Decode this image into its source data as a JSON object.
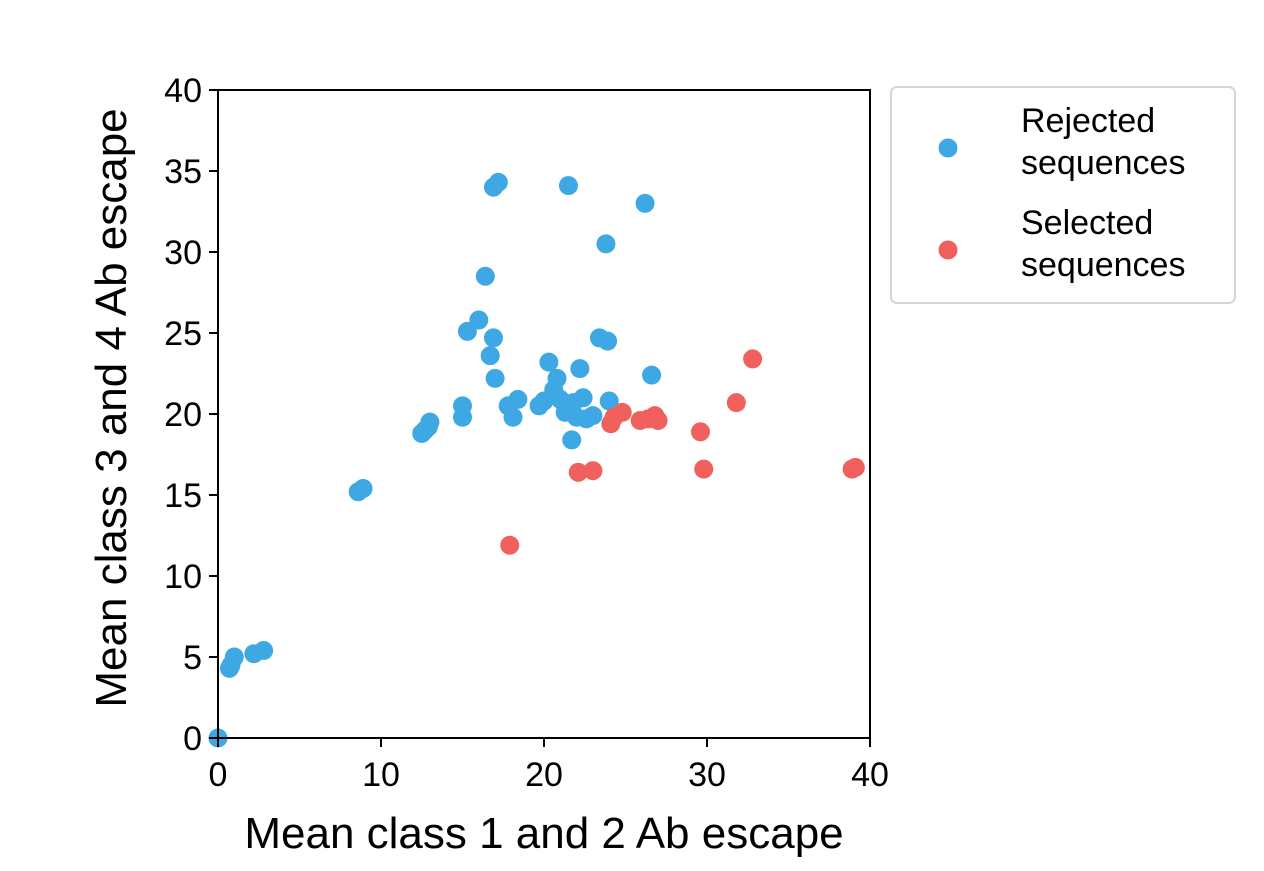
{
  "chart_data": {
    "type": "scatter",
    "xlabel": "Mean class 1 and 2 Ab escape",
    "ylabel": "Mean class 3 and 4 Ab escape",
    "xlim": [
      0,
      40
    ],
    "ylim": [
      0,
      40
    ],
    "xticks": [
      0,
      10,
      20,
      30,
      40
    ],
    "yticks": [
      0,
      5,
      10,
      15,
      20,
      25,
      30,
      35,
      40
    ],
    "grid": false,
    "legend_position": "outside-top-right",
    "series": [
      {
        "name_lines": [
          "Rejected",
          "sequences"
        ],
        "color": "#3da8e3",
        "points": [
          [
            0.0,
            0.0
          ],
          [
            0.7,
            4.3
          ],
          [
            0.8,
            4.5
          ],
          [
            1.0,
            5.0
          ],
          [
            2.2,
            5.2
          ],
          [
            2.8,
            5.4
          ],
          [
            8.6,
            15.2
          ],
          [
            8.9,
            15.4
          ],
          [
            12.5,
            18.8
          ],
          [
            12.7,
            19.0
          ],
          [
            12.9,
            19.2
          ],
          [
            13.0,
            19.5
          ],
          [
            15.0,
            19.8
          ],
          [
            15.0,
            20.5
          ],
          [
            15.3,
            25.1
          ],
          [
            16.0,
            25.8
          ],
          [
            16.4,
            28.5
          ],
          [
            16.7,
            23.6
          ],
          [
            16.9,
            24.7
          ],
          [
            17.0,
            22.2
          ],
          [
            16.9,
            34.0
          ],
          [
            17.2,
            34.3
          ],
          [
            17.8,
            20.5
          ],
          [
            18.1,
            19.8
          ],
          [
            18.4,
            20.9
          ],
          [
            19.7,
            20.5
          ],
          [
            20.0,
            20.8
          ],
          [
            20.3,
            23.2
          ],
          [
            20.6,
            21.5
          ],
          [
            20.8,
            22.2
          ],
          [
            21.0,
            20.9
          ],
          [
            21.3,
            20.1
          ],
          [
            21.5,
            34.1
          ],
          [
            21.7,
            18.4
          ],
          [
            21.8,
            20.7
          ],
          [
            22.0,
            19.8
          ],
          [
            22.2,
            22.8
          ],
          [
            22.4,
            21.0
          ],
          [
            22.6,
            19.7
          ],
          [
            23.0,
            19.9
          ],
          [
            23.4,
            24.7
          ],
          [
            23.8,
            30.5
          ],
          [
            23.9,
            24.5
          ],
          [
            24.0,
            20.8
          ],
          [
            26.2,
            33.0
          ],
          [
            26.6,
            22.4
          ]
        ]
      },
      {
        "name_lines": [
          "Selected",
          "sequences"
        ],
        "color": "#f0605d",
        "points": [
          [
            17.9,
            11.9
          ],
          [
            22.1,
            16.4
          ],
          [
            23.0,
            16.5
          ],
          [
            24.1,
            19.4
          ],
          [
            24.3,
            19.8
          ],
          [
            24.8,
            20.1
          ],
          [
            25.9,
            19.6
          ],
          [
            26.4,
            19.7
          ],
          [
            26.8,
            19.9
          ],
          [
            27.0,
            19.6
          ],
          [
            29.6,
            18.9
          ],
          [
            29.8,
            16.6
          ],
          [
            31.8,
            20.7
          ],
          [
            32.8,
            23.4
          ],
          [
            38.9,
            16.6
          ],
          [
            39.1,
            16.7
          ]
        ]
      }
    ]
  }
}
